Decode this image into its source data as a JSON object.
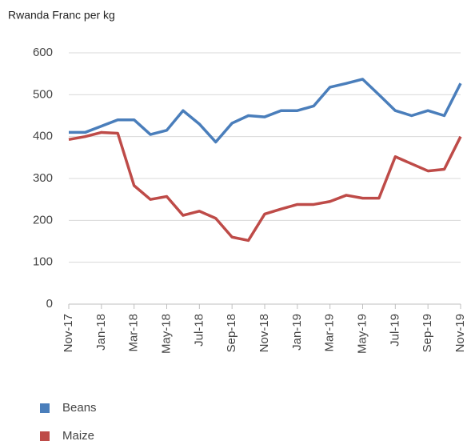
{
  "chart_data": {
    "type": "line",
    "y_axis_label": "Rwanda Franc per kg",
    "categories": [
      "Nov-17",
      null,
      "Jan-18",
      null,
      "Mar-18",
      null,
      "May-18",
      null,
      "Jul-18",
      null,
      "Sep-18",
      null,
      "Nov-18",
      null,
      "Jan-19",
      null,
      "Mar-19",
      null,
      "May-19",
      null,
      "Jul-19",
      null,
      "Sep-19",
      null,
      "Nov-19"
    ],
    "series": [
      {
        "name": "Beans",
        "color": "#4a7ebb",
        "values": [
          410,
          410,
          425,
          440,
          440,
          405,
          415,
          462,
          430,
          387,
          432,
          450,
          447,
          462,
          462,
          473,
          518,
          527,
          537,
          500,
          462,
          450,
          462,
          450,
          527
        ]
      },
      {
        "name": "Maize",
        "color": "#be4b48",
        "values": [
          393,
          400,
          410,
          408,
          283,
          250,
          257,
          212,
          222,
          205,
          160,
          152,
          215,
          227,
          238,
          238,
          245,
          260,
          253,
          253,
          352,
          335,
          318,
          322,
          400
        ]
      }
    ],
    "ylim": [
      0,
      600
    ],
    "yticks": [
      0,
      100,
      200,
      300,
      400,
      500,
      600
    ],
    "grid": true,
    "legend": "bottom-left"
  }
}
